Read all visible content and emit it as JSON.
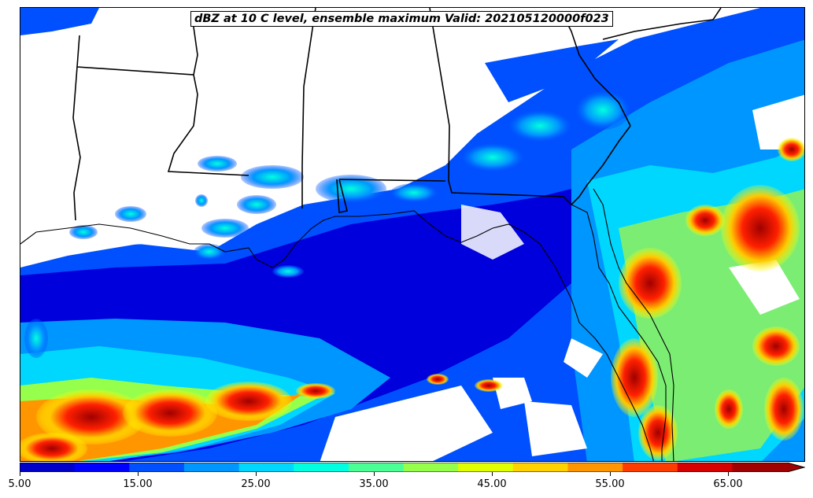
{
  "title": "dBZ at 10 C level, ensemble maximum Valid: 202105120000f023",
  "colorbar": {
    "min": 5.0,
    "max": 70.0,
    "extend": "max",
    "levels": [
      5,
      10,
      15,
      20,
      25,
      30,
      35,
      40,
      45,
      50,
      55,
      60,
      65,
      70
    ],
    "colors": [
      "#0000c8",
      "#0000ff",
      "#0050ff",
      "#0096ff",
      "#00d7ff",
      "#00ffe0",
      "#4bff96",
      "#96ff4b",
      "#e1ff00",
      "#ffd200",
      "#ff9600",
      "#ff3c00",
      "#d70000",
      "#a00000"
    ],
    "tick_labels": [
      "5.00",
      "15.00",
      "25.00",
      "35.00",
      "45.00",
      "55.00",
      "65.00"
    ]
  },
  "map": {
    "region": "U.S. Gulf Coast and Florida",
    "colors": {
      "land_outline": "#000000",
      "background": "#ffffff"
    }
  }
}
